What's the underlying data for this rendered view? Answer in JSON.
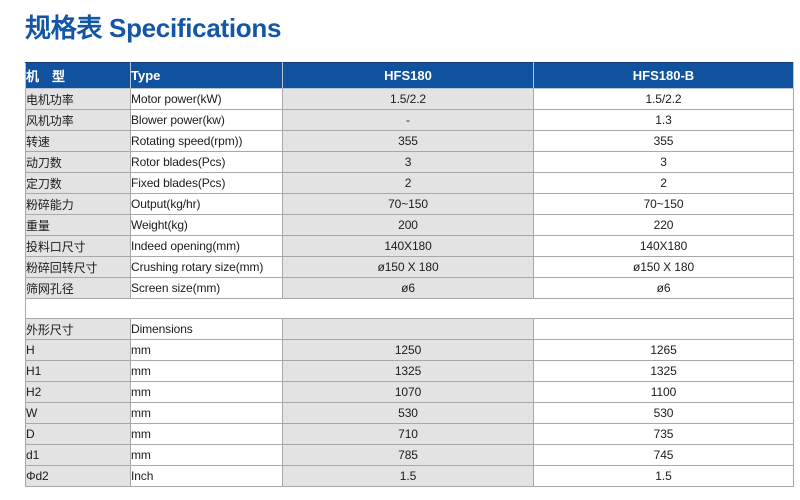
{
  "page": {
    "title": "规格表 Specifications"
  },
  "colors": {
    "title_blue": "#1356a6",
    "header_blue": "#11529e",
    "row_gray": "#e3e3e4",
    "row_white": "#ffffff",
    "border_gray": "#a8a8a8",
    "text": "#1b1b1b"
  },
  "table": {
    "headers": [
      "机　型",
      "Type",
      "HFS180",
      "HFS180-B"
    ],
    "spec_rows": [
      {
        "zh": "电机功率",
        "en": "Motor power(kW)",
        "hfs180": "1.5/2.2",
        "hfs180b": "1.5/2.2"
      },
      {
        "zh": "风机功率",
        "en": "Blower power(kw)",
        "hfs180": "-",
        "hfs180b": "1.3"
      },
      {
        "zh": "转速",
        "en": "Rotating speed(rpm))",
        "hfs180": "355",
        "hfs180b": "355"
      },
      {
        "zh": "动刀数",
        "en": "Rotor blades(Pcs)",
        "hfs180": "3",
        "hfs180b": "3"
      },
      {
        "zh": "定刀数",
        "en": "Fixed blades(Pcs)",
        "hfs180": "2",
        "hfs180b": "2"
      },
      {
        "zh": "粉碎能力",
        "en": "Output(kg/hr)",
        "hfs180": "70~150",
        "hfs180b": "70~150"
      },
      {
        "zh": "重量",
        "en": "Weight(kg)",
        "hfs180": "200",
        "hfs180b": "220"
      },
      {
        "zh": "投料口尺寸",
        "en": "Indeed opening(mm)",
        "hfs180": "140X180",
        "hfs180b": "140X180"
      },
      {
        "zh": "粉碎回转尺寸",
        "en": "Crushing rotary size(mm)",
        "hfs180": "ø150 X 180",
        "hfs180b": "ø150 X 180"
      },
      {
        "zh": "筛网孔径",
        "en": "Screen size(mm)",
        "hfs180": "ø6",
        "hfs180b": "ø6"
      }
    ],
    "dimension_rows": [
      {
        "zh": "外形尺寸",
        "en": "Dimensions",
        "hfs180": "",
        "hfs180b": ""
      },
      {
        "zh": "H",
        "en": "mm",
        "hfs180": "1250",
        "hfs180b": "1265"
      },
      {
        "zh": "H1",
        "en": "mm",
        "hfs180": "1325",
        "hfs180b": "1325"
      },
      {
        "zh": "H2",
        "en": "mm",
        "hfs180": "1070",
        "hfs180b": "1100"
      },
      {
        "zh": "W",
        "en": "mm",
        "hfs180": "530",
        "hfs180b": "530"
      },
      {
        "zh": "D",
        "en": "mm",
        "hfs180": "710",
        "hfs180b": "735"
      },
      {
        "zh": "d1",
        "en": "mm",
        "hfs180": "785",
        "hfs180b": "745"
      },
      {
        "zh": "Φd2",
        "en": "Inch",
        "hfs180": "1.5",
        "hfs180b": "1.5"
      }
    ]
  }
}
